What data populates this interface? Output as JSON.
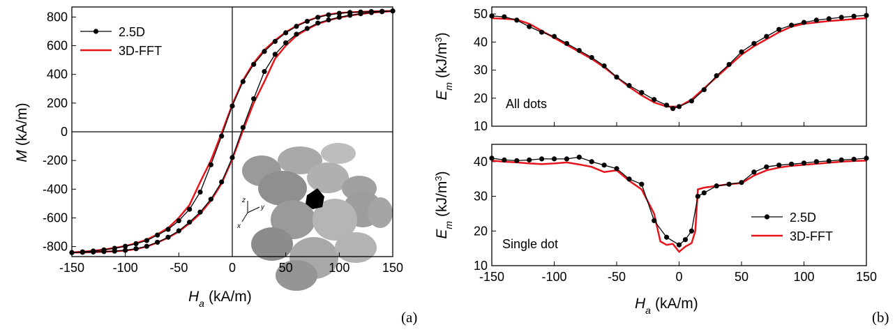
{
  "chart_data": [
    {
      "type": "line",
      "panel": "(a)",
      "ylabel": {
        "symbol": "M",
        "unit": "(kA/m)"
      },
      "xlabel": {
        "symbol": "H",
        "subscript": "a",
        "unit": "(kA/m)"
      },
      "xlim": [
        -150,
        150
      ],
      "xticks": [
        -150,
        -100,
        -50,
        0,
        50,
        100,
        150
      ],
      "ylim": [
        -870,
        870
      ],
      "yticks": [
        -800,
        -600,
        -400,
        -200,
        0,
        200,
        400,
        600,
        800
      ],
      "zero_lines": true,
      "legend": "upper left",
      "inset_axes": [
        "z",
        "y",
        "x"
      ],
      "series": [
        {
          "name": "2.5D",
          "color": "#000000",
          "marker": "circle",
          "x": [
            150,
            140,
            130,
            120,
            110,
            100,
            90,
            80,
            70,
            60,
            50,
            40,
            30,
            20,
            10,
            0,
            -10,
            -20,
            -30,
            -40,
            -50,
            -60,
            -70,
            -80,
            -90,
            -100,
            -110,
            -120,
            -130,
            -140,
            -150,
            -150,
            -140,
            -130,
            -120,
            -110,
            -100,
            -90,
            -80,
            -70,
            -60,
            -50,
            -40,
            -30,
            -20,
            -10,
            0,
            10,
            20,
            30,
            40,
            50,
            60,
            70,
            80,
            90,
            100,
            110,
            120,
            130,
            140,
            150
          ],
          "values": [
            842,
            840,
            838,
            835,
            832,
            826,
            815,
            798,
            770,
            735,
            690,
            630,
            560,
            470,
            350,
            180,
            -30,
            -230,
            -420,
            -540,
            -620,
            -680,
            -720,
            -758,
            -780,
            -798,
            -812,
            -823,
            -831,
            -837,
            -842,
            -842,
            -840,
            -838,
            -835,
            -832,
            -826,
            -815,
            -798,
            -770,
            -735,
            -690,
            -630,
            -560,
            -470,
            -350,
            -180,
            30,
            230,
            420,
            540,
            620,
            680,
            720,
            758,
            780,
            798,
            812,
            823,
            831,
            837,
            842
          ]
        },
        {
          "name": "3D-FFT",
          "color": "#e8141b",
          "x": [
            150,
            140,
            130,
            120,
            110,
            100,
            90,
            80,
            70,
            60,
            50,
            40,
            30,
            20,
            10,
            0,
            -10,
            -20,
            -30,
            -40,
            -50,
            -60,
            -70,
            -80,
            -90,
            -100,
            -110,
            -120,
            -130,
            -140,
            -150,
            -150,
            -140,
            -130,
            -120,
            -110,
            -100,
            -90,
            -80,
            -70,
            -60,
            -50,
            -40,
            -30,
            -20,
            -10,
            0,
            10,
            20,
            30,
            40,
            50,
            60,
            70,
            80,
            90,
            100,
            110,
            120,
            130,
            140,
            150
          ],
          "values": [
            842,
            841,
            839,
            836,
            833,
            828,
            818,
            800,
            772,
            738,
            695,
            638,
            570,
            480,
            360,
            190,
            -10,
            -200,
            -350,
            -510,
            -600,
            -670,
            -715,
            -752,
            -777,
            -796,
            -810,
            -821,
            -830,
            -836,
            -841,
            -842,
            -841,
            -839,
            -836,
            -833,
            -828,
            -818,
            -800,
            -772,
            -738,
            -695,
            -638,
            -570,
            -480,
            -360,
            -190,
            10,
            200,
            350,
            510,
            600,
            670,
            715,
            752,
            777,
            796,
            810,
            821,
            830,
            836,
            841
          ]
        }
      ]
    },
    {
      "type": "line",
      "annotation": "All dots",
      "ylabel": {
        "symbol": "E",
        "subscript": "m",
        "unit": "(kJ/m",
        "sup": "3",
        "unit_end": ")"
      },
      "xlim": [
        -150,
        150
      ],
      "xticks": [
        -150,
        -100,
        -50,
        0,
        50,
        100,
        150
      ],
      "xtick_labels": false,
      "ylim": [
        10,
        52.5
      ],
      "yticks": [
        10,
        20,
        30,
        40,
        50
      ],
      "series": [
        {
          "name": "2.5D",
          "color": "#000000",
          "marker": "circle",
          "x": [
            -150,
            -140,
            -130,
            -120,
            -110,
            -100,
            -90,
            -80,
            -70,
            -60,
            -50,
            -40,
            -30,
            -20,
            -10,
            -5,
            0,
            10,
            20,
            30,
            40,
            50,
            60,
            70,
            80,
            90,
            100,
            110,
            120,
            130,
            140,
            150
          ],
          "values": [
            49.3,
            49,
            47.8,
            45.5,
            43.5,
            42,
            39.5,
            37,
            34.5,
            31.5,
            27.5,
            24.5,
            22,
            19.5,
            17.5,
            16.3,
            17,
            19,
            23,
            28,
            32,
            36.5,
            39.5,
            42,
            44.5,
            46,
            47,
            47.8,
            48.3,
            48.8,
            49.2,
            49.5
          ]
        },
        {
          "name": "3D-FFT",
          "color": "#e8141b",
          "x": [
            -150,
            -140,
            -130,
            -120,
            -110,
            -100,
            -90,
            -80,
            -70,
            -60,
            -50,
            -40,
            -30,
            -20,
            -10,
            0,
            10,
            20,
            30,
            40,
            50,
            60,
            70,
            80,
            90,
            100,
            110,
            120,
            130,
            140,
            150
          ],
          "values": [
            48.5,
            48.3,
            48,
            46.5,
            44,
            41.5,
            39,
            36.5,
            34,
            31,
            27.5,
            24,
            21,
            18.5,
            17,
            17,
            19.5,
            23.5,
            27.5,
            31.5,
            35.5,
            38.5,
            41,
            43.5,
            45.5,
            46.5,
            47,
            47.5,
            47.8,
            48.2,
            48.5
          ]
        }
      ]
    },
    {
      "type": "line",
      "annotation": "Single dot",
      "panel": "(b)",
      "ylabel": {
        "symbol": "E",
        "subscript": "m",
        "unit": "(kJ/m",
        "sup": "3",
        "unit_end": ")"
      },
      "xlabel": {
        "symbol": "H",
        "subscript": "a",
        "unit": "(kA/m)"
      },
      "xlim": [
        -150,
        150
      ],
      "xticks": [
        -150,
        -100,
        -50,
        0,
        50,
        100,
        150
      ],
      "ylim": [
        10,
        45
      ],
      "yticks": [
        10,
        20,
        30,
        40
      ],
      "legend": "lower right",
      "series": [
        {
          "name": "2.5D",
          "color": "#000000",
          "marker": "circle",
          "x": [
            -150,
            -140,
            -130,
            -120,
            -110,
            -100,
            -90,
            -80,
            -70,
            -60,
            -50,
            -40,
            -30,
            -20,
            -10,
            0,
            5,
            10,
            15,
            20,
            30,
            40,
            50,
            60,
            70,
            80,
            90,
            100,
            110,
            120,
            130,
            140,
            150
          ],
          "values": [
            41,
            40.5,
            40.3,
            40.5,
            40.8,
            40.8,
            40.8,
            41.3,
            40,
            39,
            38,
            35,
            33.5,
            23,
            18.2,
            16,
            17.5,
            20,
            30,
            31,
            33,
            33.5,
            34,
            37,
            38.5,
            39,
            39.3,
            39.6,
            40,
            40.2,
            40.5,
            40.7,
            41
          ]
        },
        {
          "name": "3D-FFT",
          "color": "#e8141b",
          "x": [
            -150,
            -140,
            -130,
            -120,
            -110,
            -100,
            -90,
            -80,
            -70,
            -60,
            -50,
            -40,
            -30,
            -20,
            -15,
            -10,
            -5,
            0,
            5,
            10,
            13,
            15,
            20,
            30,
            40,
            50,
            60,
            70,
            80,
            90,
            100,
            110,
            120,
            130,
            140,
            150
          ],
          "values": [
            40.3,
            40,
            39.8,
            39.5,
            39.3,
            39.5,
            39.8,
            39.2,
            38.5,
            37,
            37.5,
            34.5,
            32,
            25,
            17,
            16,
            16.3,
            14,
            15.5,
            16.5,
            20,
            32,
            32.5,
            33,
            33.5,
            33.8,
            36,
            37.5,
            38.3,
            38.8,
            39.1,
            39.4,
            39.7,
            40,
            40.2,
            40.3
          ]
        }
      ]
    }
  ]
}
